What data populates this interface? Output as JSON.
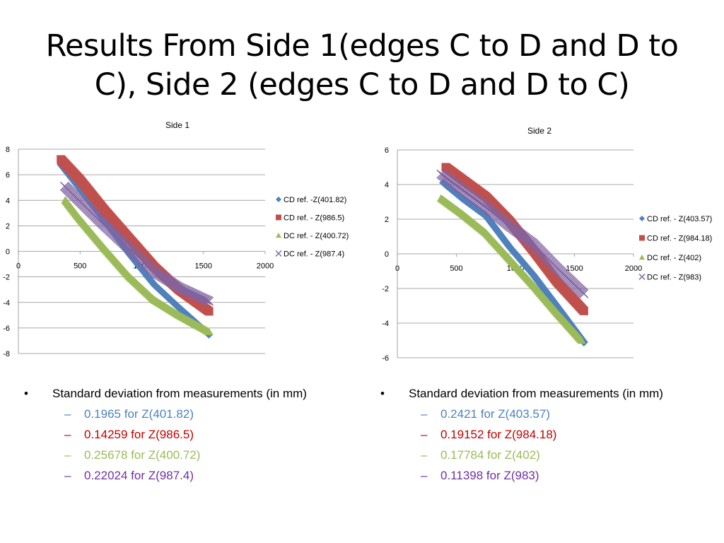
{
  "slide": {
    "title_line1": "Results From Side 1(edges C to D and D to",
    "title_line2": "C), Side 2 (edges C to D and D to C)"
  },
  "chart_data": [
    {
      "type": "scatter",
      "title": "Side 1",
      "xlabel": "",
      "ylabel": "",
      "xlim": [
        0,
        2000
      ],
      "ylim": [
        -8,
        8
      ],
      "xticks": [
        "0",
        "500",
        "1000",
        "1500",
        "2000"
      ],
      "yticks": [
        "8",
        "6",
        "4",
        "2",
        "0",
        "-2",
        "-4",
        "-6",
        "-8"
      ],
      "grid": "horizontal",
      "legend_position": "right",
      "series": [
        {
          "name": "CD ref. -Z(401.82)",
          "color": "#4f81bd",
          "marker": "diamond",
          "x": [
            345,
            500,
            700,
            900,
            1100,
            1300,
            1545
          ],
          "y": [
            6.8,
            4.9,
            2.4,
            -0.2,
            -2.6,
            -4.4,
            -6.5
          ]
        },
        {
          "name": "CD ref. - Z(986.5)",
          "color": "#c0504d",
          "marker": "square",
          "x": [
            345,
            500,
            700,
            900,
            1100,
            1300,
            1545
          ],
          "y": [
            7.2,
            5.6,
            3.2,
            1.0,
            -1.2,
            -3.0,
            -4.7
          ]
        },
        {
          "name": "DC ref. - Z(400.72)",
          "color": "#9bbb59",
          "marker": "triangle",
          "x": [
            380,
            500,
            700,
            900,
            1100,
            1300,
            1545
          ],
          "y": [
            4.0,
            2.5,
            0.2,
            -2.0,
            -3.8,
            -5.0,
            -6.3
          ]
        },
        {
          "name": "DC ref.  - Z(987.4)",
          "color": "#8064a2",
          "marker": "x",
          "x": [
            375,
            500,
            700,
            900,
            1100,
            1300,
            1545
          ],
          "y": [
            5.1,
            3.9,
            2.0,
            0.2,
            -1.6,
            -2.8,
            -3.9
          ]
        }
      ]
    },
    {
      "type": "scatter",
      "title": "Side 2",
      "xlabel": "",
      "ylabel": "",
      "xlim": [
        0,
        2000
      ],
      "ylim": [
        -6,
        6
      ],
      "xticks": [
        "0",
        "500",
        "1000",
        "1500",
        "2000"
      ],
      "yticks": [
        "6",
        "4",
        "2",
        "0",
        "-2",
        "-4",
        "-6"
      ],
      "grid": "horizontal",
      "legend_position": "right",
      "series": [
        {
          "name": "CD ref. - Z(403.57)",
          "color": "#4f81bd",
          "marker": "diamond",
          "x": [
            390,
            550,
            750,
            950,
            1150,
            1350,
            1580
          ],
          "y": [
            4.1,
            3.2,
            2.2,
            0.4,
            -1.2,
            -3.0,
            -5.1
          ]
        },
        {
          "name": "CD ref. - Z(984.18)",
          "color": "#c0504d",
          "marker": "square",
          "x": [
            410,
            550,
            750,
            950,
            1150,
            1350,
            1580
          ],
          "y": [
            5.0,
            4.3,
            3.3,
            1.9,
            0.2,
            -1.6,
            -3.3
          ]
        },
        {
          "name": "DC ref. - Z(402)",
          "color": "#9bbb59",
          "marker": "triangle",
          "x": [
            370,
            550,
            750,
            950,
            1150,
            1350,
            1560
          ],
          "y": [
            3.2,
            2.3,
            1.2,
            -0.3,
            -1.8,
            -3.4,
            -5.0
          ]
        },
        {
          "name": "DC ref. - Z(983)",
          "color": "#8064a2",
          "marker": "x",
          "x": [
            370,
            550,
            750,
            950,
            1150,
            1350,
            1580
          ],
          "y": [
            4.6,
            3.7,
            2.7,
            1.6,
            0.6,
            -0.8,
            -2.3
          ]
        }
      ]
    }
  ],
  "stats_left": {
    "heading": "Standard deviation from measurements (in mm)",
    "items": [
      {
        "text": "0.1965 for Z(401.82)",
        "color": "#4f81bd"
      },
      {
        "text": "0.14259 for Z(986.5)",
        "color": "#c00000"
      },
      {
        "text": "0.25678 for Z(400.72)",
        "color": "#9bbb59"
      },
      {
        "text": "0.22024 for Z(987.4)",
        "color": "#7030a0"
      }
    ]
  },
  "stats_right": {
    "heading": "Standard deviation from measurements (in mm)",
    "items": [
      {
        "text": "0.2421 for Z(403.57)",
        "color": "#4f81bd"
      },
      {
        "text": "0.19152 for Z(984.18)",
        "color": "#c00000"
      },
      {
        "text": "0.17784 for Z(402)",
        "color": "#9bbb59"
      },
      {
        "text": "0.11398 for Z(983)",
        "color": "#7030a0"
      }
    ]
  }
}
